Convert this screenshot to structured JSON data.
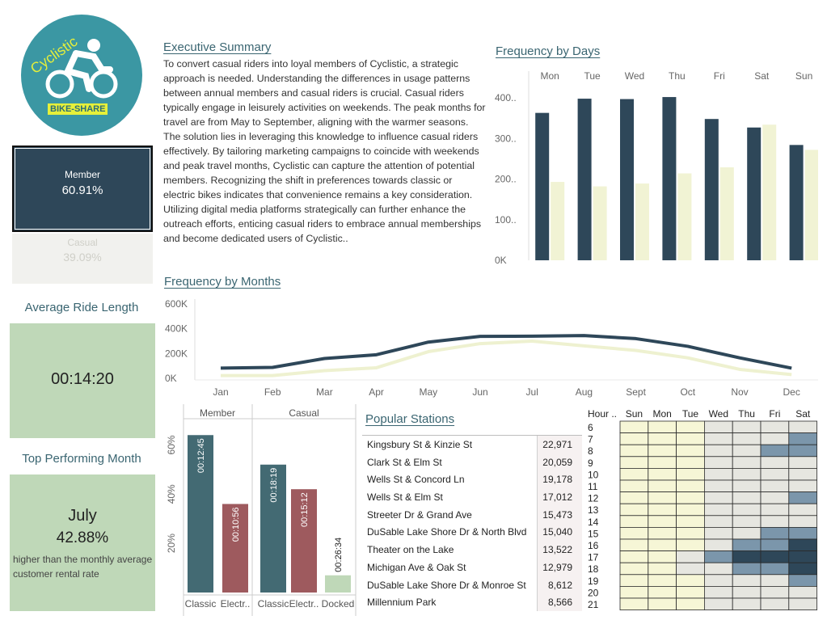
{
  "logo": {
    "text": "Cyclistic",
    "badge": "BIKE-SHARE"
  },
  "kpis": {
    "member_label": "Member",
    "member_value": "60.91%",
    "casual_label": "Casual",
    "casual_value": "39.09%"
  },
  "avg_ride": {
    "title": "Average Ride Length",
    "value": "00:14:20"
  },
  "top_month": {
    "title": "Top Performing Month",
    "month": "July",
    "percent": "42.88%",
    "note": "higher than the monthly average customer rental rate"
  },
  "summary": {
    "title": "Executive Summary",
    "paragraphs": [
      "To convert casual riders into loyal members of Cyclistic, a strategic approach is needed. Understanding the differences in usage patterns between annual members and casual riders is crucial. Casual riders typically engage in leisurely activities on weekends. The peak months for travel are from May to September, aligning with the warmer seasons.",
      "The solution lies in leveraging this knowledge to influence casual riders effectively. By tailoring marketing campaigns to coincide with weekends and peak travel months, Cyclistic can capture the attention of potential members. Recognizing the shift in preferences towards classic or electric bikes indicates that convenience remains a key consideration. Utilizing digital media platforms strategically can further enhance the outreach efforts, enticing casual riders to embrace annual memberships and become dedicated users of Cyclistic.."
    ]
  },
  "colors": {
    "member": "#2e4759",
    "casual": "#f1f3d4",
    "classic": "#436a73",
    "electric": "#9e5a5e",
    "docked": "#bfd8b8",
    "accent": "#3a6571"
  },
  "chart_data": [
    {
      "type": "bar",
      "title": "Frequency by Days",
      "categories": [
        "Mon",
        "Tue",
        "Wed",
        "Thu",
        "Fri",
        "Sat",
        "Sun"
      ],
      "y_ticks": [
        "0K",
        "100..",
        "200..",
        "300..",
        "400.."
      ],
      "ylim": [
        0,
        430000
      ],
      "series": [
        {
          "values": [
            363000,
            398000,
            397000,
            402000,
            348000,
            327000,
            284000
          ]
        },
        {
          "values": [
            193000,
            182000,
            189000,
            214000,
            229000,
            334000,
            272000
          ]
        }
      ]
    },
    {
      "type": "line",
      "title": "Frequency by Months",
      "categories": [
        "Jan",
        "Feb",
        "Mar",
        "Apr",
        "May",
        "Jun",
        "Jul",
        "Aug",
        "Sept",
        "Oct",
        "Nov",
        "Dec"
      ],
      "y_ticks": [
        "0K",
        "200K",
        "400K",
        "600K"
      ],
      "ylim": [
        0,
        600000
      ],
      "series": [
        {
          "values": [
            82000,
            88000,
            160000,
            190000,
            292000,
            338000,
            340000,
            345000,
            320000,
            258000,
            165000,
            82000
          ]
        },
        {
          "values": [
            22000,
            22000,
            62000,
            85000,
            215000,
            280000,
            300000,
            262000,
            225000,
            165000,
            72000,
            30000
          ]
        }
      ]
    },
    {
      "type": "bar",
      "groups": [
        "Member",
        "Casual"
      ],
      "categories": [
        "Classic",
        "Electr..",
        "Classic",
        "Electr..",
        "Docked"
      ],
      "y_ticks": [
        "20%",
        "40%",
        "60%"
      ],
      "ylim": [
        0,
        70
      ],
      "bars": [
        {
          "group": "Member",
          "type": "Classic",
          "share": 64,
          "label": "00:12:45"
        },
        {
          "group": "Member",
          "type": "Electric",
          "share": 36,
          "label": "00:10:56"
        },
        {
          "group": "Casual",
          "type": "Classic",
          "share": 52,
          "label": "00:18:19"
        },
        {
          "group": "Casual",
          "type": "Electric",
          "share": 42,
          "label": "00:15:12"
        },
        {
          "group": "Casual",
          "type": "Docked",
          "share": 7,
          "label": "00:26:34"
        }
      ]
    },
    {
      "type": "table",
      "title": "Popular Stations",
      "rows": [
        {
          "name": "Kingsbury St & Kinzie St",
          "value": "22,971"
        },
        {
          "name": "Clark St & Elm St",
          "value": "20,059"
        },
        {
          "name": "Wells St & Concord Ln",
          "value": "19,178"
        },
        {
          "name": "Wells St & Elm St",
          "value": "17,012"
        },
        {
          "name": "Streeter Dr & Grand Ave",
          "value": "15,473"
        },
        {
          "name": "DuSable Lake Shore Dr & North Blvd",
          "value": "15,040"
        },
        {
          "name": "Theater on the Lake",
          "value": "13,522"
        },
        {
          "name": "Michigan Ave & Oak St",
          "value": "12,979"
        },
        {
          "name": "DuSable Lake Shore Dr & Monroe St",
          "value": "8,612"
        },
        {
          "name": "Millennium Park",
          "value": "8,566"
        }
      ]
    },
    {
      "type": "heatmap",
      "row_header": "Hour ..",
      "columns": [
        "Sun",
        "Mon",
        "Tue",
        "Wed",
        "Thu",
        "Fri",
        "Sat"
      ],
      "rows": [
        "6",
        "7",
        "8",
        "9",
        "10",
        "11",
        "12",
        "13",
        "14",
        "15",
        "16",
        "17",
        "18",
        "19",
        "20",
        "21"
      ],
      "levels": [
        [
          0,
          0,
          0,
          1,
          1,
          1,
          1
        ],
        [
          0,
          0,
          0,
          1,
          1,
          1,
          3
        ],
        [
          0,
          0,
          0,
          1,
          1,
          3,
          3
        ],
        [
          0,
          0,
          0,
          1,
          1,
          1,
          1
        ],
        [
          0,
          0,
          0,
          1,
          1,
          1,
          1
        ],
        [
          0,
          0,
          0,
          1,
          1,
          1,
          1
        ],
        [
          0,
          0,
          0,
          1,
          1,
          1,
          3
        ],
        [
          0,
          0,
          0,
          1,
          1,
          1,
          1
        ],
        [
          0,
          0,
          0,
          1,
          1,
          1,
          1
        ],
        [
          0,
          0,
          0,
          1,
          1,
          3,
          3
        ],
        [
          0,
          0,
          0,
          1,
          3,
          3,
          4
        ],
        [
          0,
          0,
          1,
          3,
          4,
          4,
          4
        ],
        [
          0,
          0,
          1,
          1,
          3,
          3,
          4
        ],
        [
          0,
          0,
          0,
          1,
          1,
          1,
          3
        ],
        [
          0,
          0,
          0,
          1,
          1,
          1,
          1
        ],
        [
          0,
          0,
          0,
          1,
          1,
          1,
          1
        ]
      ],
      "level_colors": [
        "#f6f6d6",
        "#e6e6e0",
        "#cdd7d9",
        "#7b96ab",
        "#2e4759"
      ]
    }
  ]
}
